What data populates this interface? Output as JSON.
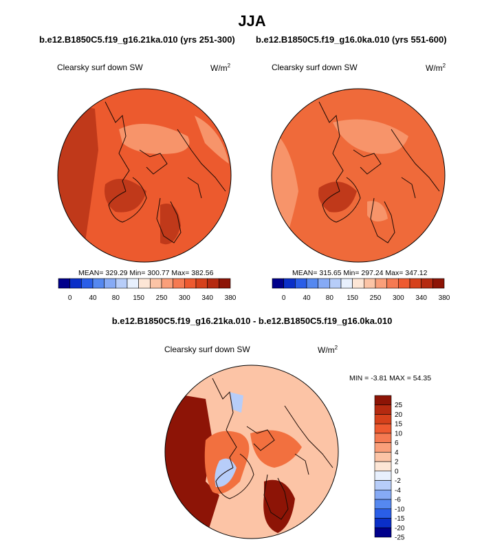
{
  "figure": {
    "title": "JJA",
    "diff_title": "b.e12.B1850C5.f19_g16.21ka.010 - b.e12.B1850C5.f19_g16.0ka.010"
  },
  "panels": [
    {
      "case_title": "b.e12.B1850C5.f19_g16.21ka.010 (yrs 251-300)",
      "variable": "Clearsky surf down SW",
      "units_base": "W/m",
      "units_exp": "2",
      "stats": "MEAN= 329.29  Min= 300.77  Max= 382.56"
    },
    {
      "case_title": "b.e12.B1850C5.f19_g16.0ka.010 (yrs 551-600)",
      "variable": "Clearsky surf down SW",
      "units_base": "W/m",
      "units_exp": "2",
      "stats": "MEAN= 315.65  Min= 297.24  Max= 347.12"
    }
  ],
  "diff_panel": {
    "variable": "Clearsky surf down SW",
    "units_base": "W/m",
    "units_exp": "2",
    "stats": "MIN =  -3.81 MAX =  54.35"
  },
  "colorbar_h": {
    "labels": [
      "0",
      "40",
      "80",
      "150",
      "250",
      "300",
      "340",
      "380"
    ],
    "colors": [
      "#00008b",
      "#0a2fc8",
      "#2a5ee8",
      "#5588f0",
      "#86aaf5",
      "#b7cdf9",
      "#e8f0fd",
      "#fde6d6",
      "#fcc4a6",
      "#fa9f7a",
      "#f57a52",
      "#ee5a30",
      "#d6411b",
      "#b52a10",
      "#8d1406"
    ]
  },
  "colorbar_v": {
    "labels": [
      "25",
      "20",
      "15",
      "10",
      "6",
      "4",
      "2",
      "0",
      "-2",
      "-4",
      "-6",
      "-10",
      "-15",
      "-20",
      "-25"
    ],
    "colors": [
      "#8d1406",
      "#b52a10",
      "#d6411b",
      "#ee5a30",
      "#f57a52",
      "#fa9f7a",
      "#fcc4a6",
      "#fde6d6",
      "#e8f0fd",
      "#b7cdf9",
      "#86aaf5",
      "#5588f0",
      "#2a5ee8",
      "#0a2fc8",
      "#00008b"
    ]
  },
  "maps": {
    "panel1_base": "#ec5a2e",
    "panel2_base": "#ef6a3a",
    "diff_base": "#fcc4a6",
    "high": "#c0391a",
    "low": "#f7946a",
    "diff_strong": "#8d1406",
    "diff_mid": "#f2703f",
    "diff_neg": "#b7cdf9"
  }
}
